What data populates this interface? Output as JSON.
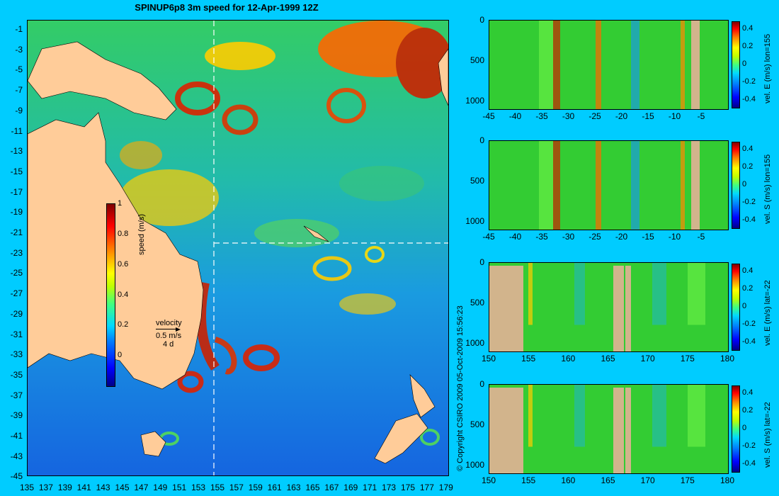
{
  "title": "SPINUP6p8 3m speed for 12-Apr-1999 12Z",
  "map": {
    "y_ticks": [
      "-1",
      "-3",
      "-5",
      "-7",
      "-9",
      "-11",
      "-13",
      "-15",
      "-17",
      "-19",
      "-21",
      "-23",
      "-25",
      "-27",
      "-29",
      "-31",
      "-33",
      "-35",
      "-37",
      "-39",
      "-41",
      "-43",
      "-45"
    ],
    "x_ticks": [
      "135",
      "137",
      "139",
      "141",
      "143",
      "145",
      "147",
      "149",
      "151",
      "153",
      "155",
      "157",
      "159",
      "161",
      "163",
      "165",
      "167",
      "169",
      "171",
      "173",
      "175",
      "177",
      "179"
    ],
    "colorbar": {
      "label": "speed (m/s)",
      "ticks": [
        "1",
        "0.8",
        "0.6",
        "0.4",
        "0.2",
        "0"
      ]
    },
    "velocity_legend": {
      "title": "velocity",
      "speed": "0.5 m/s",
      "duration": "4 d"
    },
    "copyright": "© Copyright CSIRO 2009   05-Oct-2009 15:56:23"
  },
  "panels": [
    {
      "label": "vel. E (m/s) lon=155",
      "x_ticks": [
        "-45",
        "-40",
        "-35",
        "-30",
        "-25",
        "-20",
        "-15",
        "-10",
        "-5"
      ],
      "y_ticks": [
        "0",
        "500",
        "1000"
      ],
      "cb_ticks": [
        "0.4",
        "0.2",
        "0",
        "-0.2",
        "-0.4"
      ]
    },
    {
      "label": "vel. S (m/s) lon=155",
      "x_ticks": [
        "-45",
        "-40",
        "-35",
        "-30",
        "-25",
        "-20",
        "-15",
        "-10",
        "-5"
      ],
      "y_ticks": [
        "0",
        "500",
        "1000"
      ],
      "cb_ticks": [
        "0.4",
        "0.2",
        "0",
        "-0.2",
        "-0.4"
      ]
    },
    {
      "label": "vel. E (m/s) lat=-22",
      "x_ticks": [
        "150",
        "155",
        "160",
        "165",
        "170",
        "175",
        "180"
      ],
      "y_ticks": [
        "0",
        "500",
        "1000"
      ],
      "cb_ticks": [
        "0.4",
        "0.2",
        "0",
        "-0.2",
        "-0.4"
      ]
    },
    {
      "label": "vel. S (m/s) lat=-22",
      "x_ticks": [
        "150",
        "155",
        "160",
        "165",
        "170",
        "175",
        "180"
      ],
      "y_ticks": [
        "0",
        "500",
        "1000"
      ],
      "cb_ticks": [
        "0.4",
        "0.2",
        "0",
        "-0.2",
        "-0.4"
      ]
    }
  ],
  "colors": {
    "background": "#00ccff",
    "land": "#ffcc99",
    "section_land": "#d2b48c",
    "section_ocean": "#33cc33"
  }
}
